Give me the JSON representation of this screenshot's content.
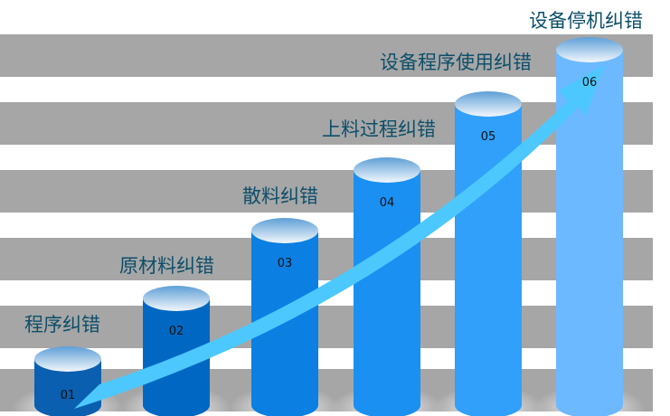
{
  "steps": [
    {
      "num": "01",
      "title": "程序纠错",
      "color": "#0a5fb0"
    },
    {
      "num": "02",
      "title": "原材料纠错",
      "color": "#0068c2"
    },
    {
      "num": "03",
      "title": "散料纠错",
      "color": "#0b7fe2"
    },
    {
      "num": "04",
      "title": "上料过程纠错",
      "color": "#1a90f2"
    },
    {
      "num": "05",
      "title": "设备程序使用纠错",
      "color": "#30a0fa"
    },
    {
      "num": "06",
      "title": "设备停机纠错",
      "color": "#6cb9ff"
    }
  ],
  "colors": {
    "stripe": "#a6a6a6",
    "arrow": "#4dc8ff",
    "title": "#0d4f6a"
  }
}
